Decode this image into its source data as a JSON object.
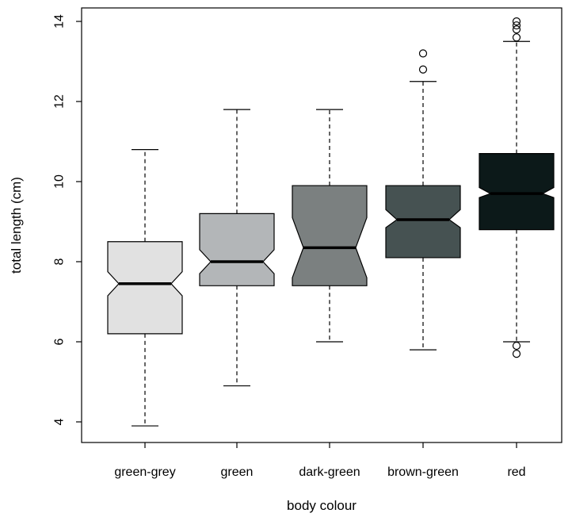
{
  "chart_data": {
    "type": "boxplot",
    "notched": true,
    "xlabel": "body colour",
    "ylabel": "total length (cm)",
    "ylim": [
      3.6,
      14.4
    ],
    "yticks": [
      4,
      6,
      8,
      10,
      12,
      14
    ],
    "categories": [
      "green-grey",
      "green",
      "dark-green",
      "brown-green",
      "red"
    ],
    "boxes": [
      {
        "name": "green-grey",
        "fill": "#e1e1e1",
        "whisker_low": 3.9,
        "q1": 6.2,
        "median": 7.45,
        "q3": 8.5,
        "whisker_high": 10.8,
        "notch_low": 7.15,
        "notch_high": 7.75,
        "outliers": []
      },
      {
        "name": "green",
        "fill": "#b3b6b8",
        "whisker_low": 4.9,
        "q1": 7.4,
        "median": 8.0,
        "q3": 9.2,
        "whisker_high": 11.8,
        "notch_low": 7.7,
        "notch_high": 8.3,
        "outliers": []
      },
      {
        "name": "dark-green",
        "fill": "#7b8080",
        "whisker_low": 6.0,
        "q1": 7.4,
        "median": 8.35,
        "q3": 9.9,
        "whisker_high": 11.8,
        "notch_low": 7.6,
        "notch_high": 9.1,
        "outliers": []
      },
      {
        "name": "brown-green",
        "fill": "#465252",
        "whisker_low": 5.8,
        "q1": 8.1,
        "median": 9.05,
        "q3": 9.9,
        "whisker_high": 12.5,
        "notch_low": 8.85,
        "notch_high": 9.3,
        "outliers": [
          12.8,
          13.2
        ]
      },
      {
        "name": "red",
        "fill": "#0c1919",
        "whisker_low": 6.0,
        "q1": 8.8,
        "median": 9.7,
        "q3": 10.7,
        "whisker_high": 13.5,
        "notch_low": 9.6,
        "notch_high": 9.85,
        "outliers": [
          5.7,
          5.9,
          13.6,
          13.8,
          13.9,
          14.0
        ]
      }
    ]
  }
}
